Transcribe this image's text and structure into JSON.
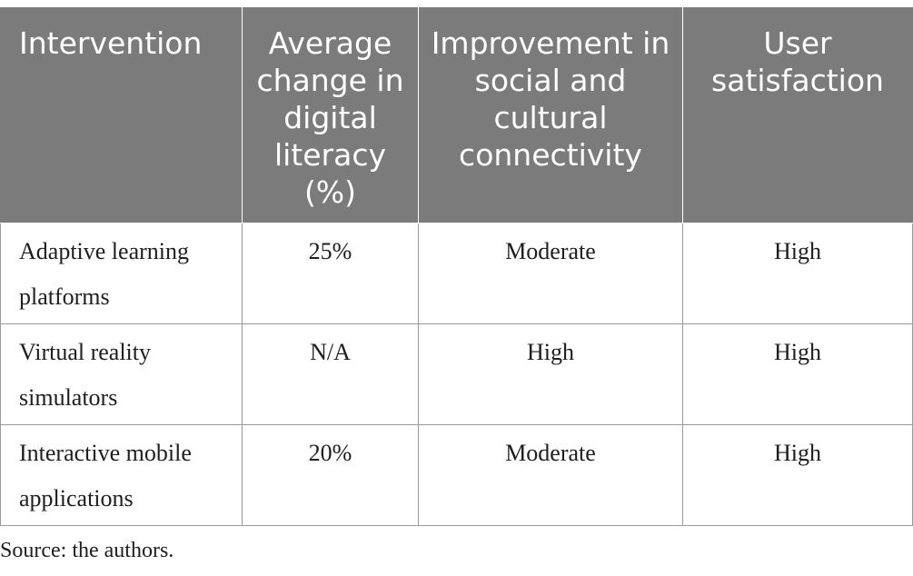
{
  "table": {
    "headers": [
      "Intervention",
      "Average change in digital literacy (%)",
      "Improvement in social and cultural connectivity",
      "User satisfaction"
    ],
    "rows": [
      [
        "Adaptive learning platforms",
        "25%",
        "Moderate",
        "High"
      ],
      [
        "Virtual reality simulators",
        "N/A",
        "High",
        "High"
      ],
      [
        "Interactive mobile applications",
        "20%",
        "Moderate",
        "High"
      ]
    ]
  },
  "caption": "Source: the authors.",
  "colors": {
    "header_background": "#7a7b7a",
    "header_text": "#ffffff",
    "body_text": "#1e1e1e",
    "grid_lines": "#9a9a9a"
  }
}
